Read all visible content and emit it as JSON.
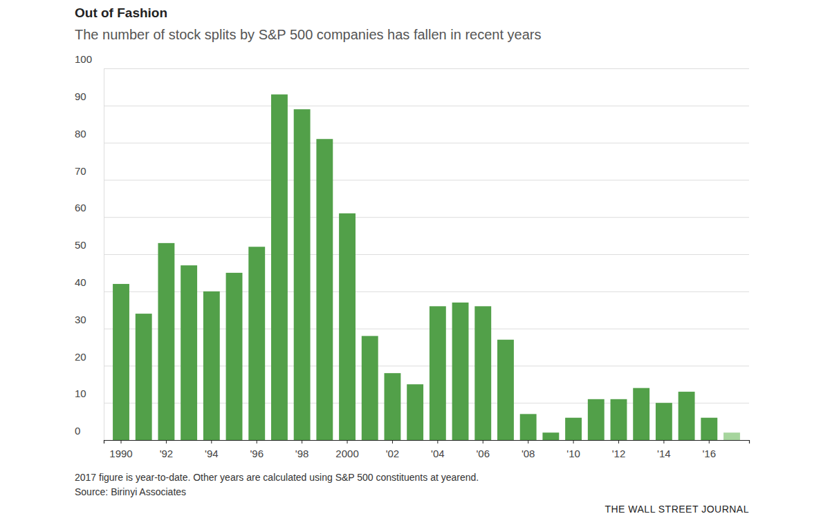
{
  "chart_data": {
    "type": "bar",
    "title": "Out of Fashion",
    "subtitle": "The number of stock splits by S&P 500 companies has fallen in recent years",
    "notes": [
      "2017 figure is year-to-date. Other years are calculated using S&P 500 constituents at yearend.",
      "Source: Birinyi Associates"
    ],
    "credit": "THE WALL STREET JOURNAL",
    "categories": [
      "1990",
      null,
      "'92",
      null,
      "'94",
      null,
      "'96",
      null,
      "'98",
      null,
      "2000",
      null,
      "'02",
      null,
      "'04",
      null,
      "'06",
      null,
      "'08",
      null,
      "'10",
      null,
      "'12",
      null,
      "'14",
      null,
      "'16",
      null
    ],
    "values": [
      42,
      34,
      53,
      47,
      40,
      45,
      52,
      93,
      89,
      81,
      61,
      28,
      18,
      15,
      36,
      37,
      36,
      27,
      7,
      2,
      6,
      11,
      11,
      14,
      10,
      13,
      6,
      2
    ],
    "colors": [
      "#52a049",
      "#52a049",
      "#52a049",
      "#52a049",
      "#52a049",
      "#52a049",
      "#52a049",
      "#52a049",
      "#52a049",
      "#52a049",
      "#52a049",
      "#52a049",
      "#52a049",
      "#52a049",
      "#52a049",
      "#52a049",
      "#52a049",
      "#52a049",
      "#52a049",
      "#52a049",
      "#52a049",
      "#52a049",
      "#52a049",
      "#52a049",
      "#52a049",
      "#52a049",
      "#52a049",
      "#a6d59d"
    ],
    "ylim": [
      0,
      100
    ],
    "yticks": [
      0,
      10,
      20,
      30,
      40,
      50,
      60,
      70,
      80,
      90,
      100
    ],
    "grid": true
  }
}
